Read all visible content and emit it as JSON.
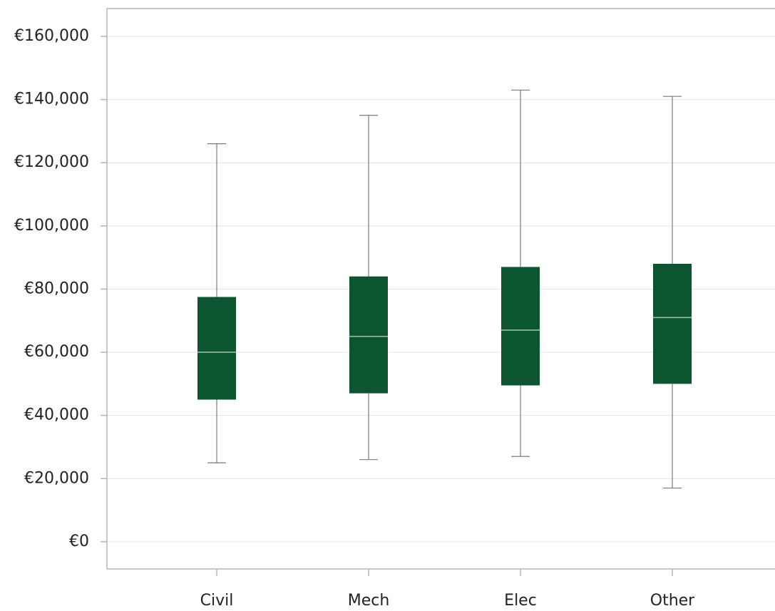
{
  "chart_data": {
    "type": "box",
    "categories": [
      "Civil",
      "Mech",
      "Elec",
      "Other"
    ],
    "min": [
      25000,
      26000,
      27000,
      17000
    ],
    "q1": [
      45000,
      47000,
      49500,
      50000
    ],
    "median": [
      60000,
      65000,
      67000,
      71000
    ],
    "q3": [
      77500,
      84000,
      87000,
      88000
    ],
    "max": [
      126000,
      135000,
      143000,
      141000
    ],
    "color": "#0b5630",
    "median_color": "#9fc6ad",
    "ylim": [
      -8600,
      168800
    ],
    "yticks": [
      {
        "value": 0,
        "label": "€0"
      },
      {
        "value": 20000,
        "label": "€20,000"
      },
      {
        "value": 40000,
        "label": "€40,000"
      },
      {
        "value": 60000,
        "label": "€60,000"
      },
      {
        "value": 80000,
        "label": "€80,000"
      },
      {
        "value": 100000,
        "label": "€100,000"
      },
      {
        "value": 120000,
        "label": "€120,000"
      },
      {
        "value": 140000,
        "label": "€140,000"
      },
      {
        "value": 160000,
        "label": "€160,000"
      }
    ],
    "grid": true
  }
}
